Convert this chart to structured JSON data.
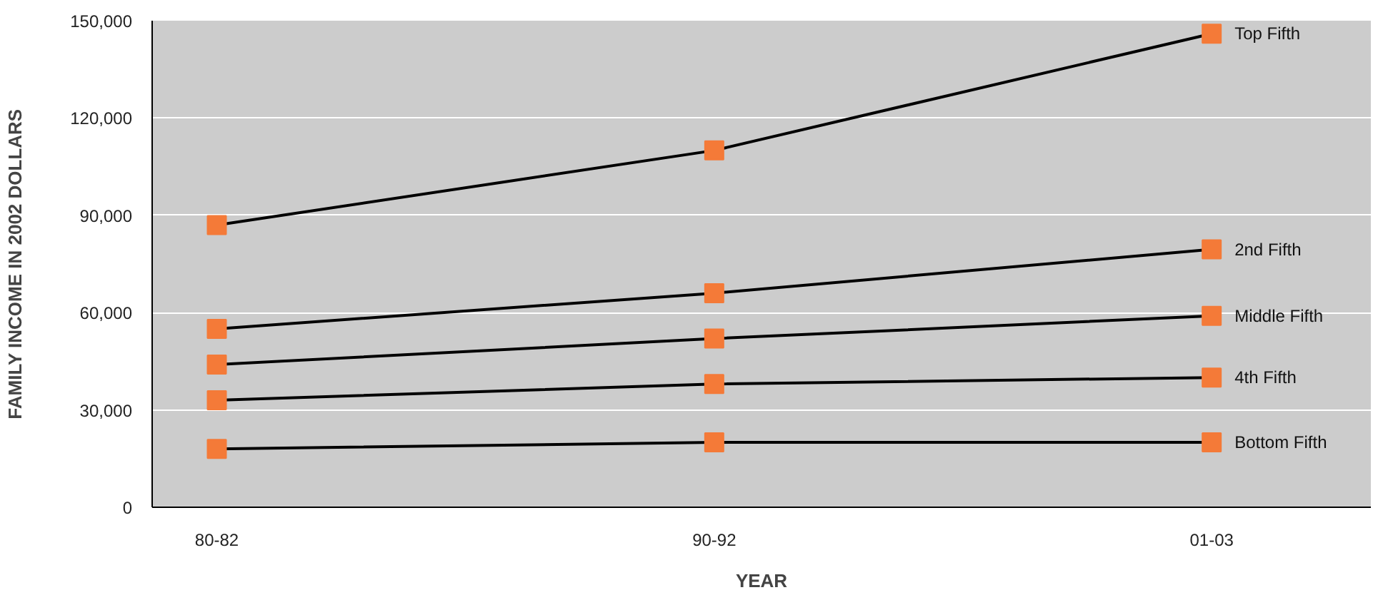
{
  "chart_data": {
    "type": "line",
    "xlabel": "YEAR",
    "ylabel": "FAMILY INCOME IN 2002 DOLLARS",
    "categories": [
      "80-82",
      "90-92",
      "01-03"
    ],
    "ylim": [
      0,
      150000
    ],
    "yticks": [
      0,
      {
        "value": 30000,
        "label": "30,000"
      },
      {
        "value": 60000,
        "label": "60,000"
      },
      {
        "value": 90000,
        "label": "90,000"
      },
      {
        "value": 120000,
        "label": "120,000"
      },
      {
        "value": 150000,
        "label": "150,000"
      }
    ],
    "grid": "y",
    "marker": "square",
    "line_style": "solid",
    "series": [
      {
        "name": "Top Fifth",
        "color": "#000000",
        "colors": [
          "#f47a38",
          "#f47a38",
          "#f47a38"
        ],
        "values": [
          87000,
          110000,
          146000
        ]
      },
      {
        "name": "2nd Fifth",
        "color": "#000000",
        "colors": [
          "#f47a38",
          "#f47a38",
          "#f47a38"
        ],
        "values": [
          55000,
          66000,
          79500
        ]
      },
      {
        "name": "Middle Fifth",
        "color": "#000000",
        "colors": [
          "#f47a38",
          "#f47a38",
          "#f47a38"
        ],
        "values": [
          44000,
          52000,
          59000
        ]
      },
      {
        "name": "4th Fifth",
        "color": "#000000",
        "colors": [
          "#f47a38",
          "#f47a38",
          "#f47a38"
        ],
        "values": [
          33000,
          38000,
          40000
        ]
      },
      {
        "name": "Bottom Fifth",
        "color": "#000000",
        "colors": [
          "#f47a38",
          "#f47a38",
          "#f47a38"
        ],
        "values": [
          18000,
          20000,
          20000
        ]
      }
    ]
  }
}
